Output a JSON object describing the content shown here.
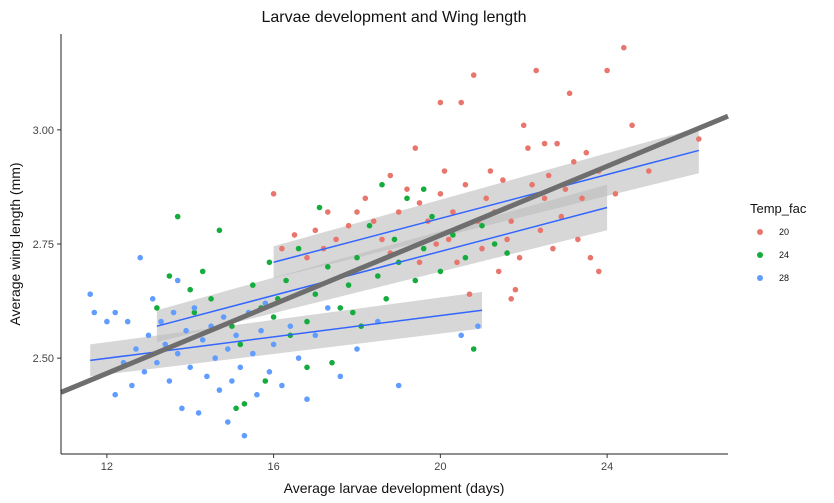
{
  "chart_data": {
    "type": "scatter",
    "title": "Larvae development and Wing length",
    "xlabel": "Average larvae development (days)",
    "ylabel": "Average wing length (mm)",
    "xlim": [
      10.9,
      26.9
    ],
    "ylim": [
      2.29,
      3.21
    ],
    "xticks": [
      12,
      16,
      20,
      24
    ],
    "yticks": [
      2.5,
      2.75,
      3.0
    ],
    "xtick_labels": [
      "12",
      "16",
      "20",
      "24"
    ],
    "ytick_labels": [
      "2.50",
      "2.75",
      "3.00"
    ],
    "grid": false,
    "legend": {
      "title": "Temp_fac",
      "placement": "right",
      "entries": [
        {
          "label": "20",
          "color": "#E8766D"
        },
        {
          "label": "24",
          "color": "#14AC3C"
        },
        {
          "label": "28",
          "color": "#619CFF"
        }
      ]
    },
    "series": [
      {
        "name": "20",
        "color": "#E8766D",
        "points": [
          [
            16,
            2.86
          ],
          [
            16.2,
            2.74
          ],
          [
            16.5,
            2.77
          ],
          [
            16.8,
            2.72
          ],
          [
            17,
            2.78
          ],
          [
            17.2,
            2.74
          ],
          [
            17.5,
            2.76
          ],
          [
            17.8,
            2.79
          ],
          [
            18,
            2.82
          ],
          [
            18.2,
            2.85
          ],
          [
            18.4,
            2.8
          ],
          [
            18.6,
            2.76
          ],
          [
            18.8,
            2.73
          ],
          [
            19,
            2.82
          ],
          [
            19.2,
            2.87
          ],
          [
            19.4,
            2.96
          ],
          [
            19.5,
            2.84
          ],
          [
            19.7,
            2.8
          ],
          [
            19.9,
            2.75
          ],
          [
            20,
            2.86
          ],
          [
            20.1,
            2.91
          ],
          [
            20.2,
            2.76
          ],
          [
            20.3,
            2.82
          ],
          [
            20.4,
            2.71
          ],
          [
            20.5,
            3.06
          ],
          [
            20.6,
            2.88
          ],
          [
            20.8,
            3.12
          ],
          [
            20.9,
            2.8
          ],
          [
            21,
            2.74
          ],
          [
            21.1,
            2.85
          ],
          [
            21.2,
            2.91
          ],
          [
            21.3,
            2.82
          ],
          [
            21.4,
            2.69
          ],
          [
            21.5,
            2.89
          ],
          [
            21.6,
            2.76
          ],
          [
            21.7,
            2.8
          ],
          [
            21.8,
            2.65
          ],
          [
            21.9,
            2.72
          ],
          [
            22,
            3.01
          ],
          [
            22.1,
            2.96
          ],
          [
            22.2,
            2.88
          ],
          [
            22.3,
            3.13
          ],
          [
            22.4,
            2.78
          ],
          [
            22.5,
            2.85
          ],
          [
            22.6,
            2.9
          ],
          [
            22.7,
            2.74
          ],
          [
            22.8,
            2.97
          ],
          [
            22.9,
            2.81
          ],
          [
            23,
            2.87
          ],
          [
            23.1,
            3.08
          ],
          [
            23.2,
            2.93
          ],
          [
            23.3,
            2.76
          ],
          [
            23.4,
            2.85
          ],
          [
            23.5,
            2.95
          ],
          [
            23.6,
            2.72
          ],
          [
            23.8,
            2.91
          ],
          [
            24,
            3.13
          ],
          [
            24.2,
            2.86
          ],
          [
            24.4,
            3.18
          ],
          [
            24.6,
            3.01
          ],
          [
            20.7,
            2.64
          ],
          [
            21.7,
            2.63
          ],
          [
            19.5,
            2.71
          ],
          [
            22.5,
            2.97
          ],
          [
            23.8,
            2.69
          ],
          [
            25,
            2.91
          ],
          [
            26.2,
            2.98
          ],
          [
            17.3,
            2.82
          ],
          [
            18.8,
            2.9
          ],
          [
            20,
            3.06
          ]
        ]
      },
      {
        "name": "24",
        "color": "#14AC3C",
        "points": [
          [
            13.2,
            2.61
          ],
          [
            13.5,
            2.68
          ],
          [
            13.7,
            2.81
          ],
          [
            14,
            2.65
          ],
          [
            14.3,
            2.69
          ],
          [
            14.5,
            2.63
          ],
          [
            14.7,
            2.78
          ],
          [
            15,
            2.57
          ],
          [
            15.1,
            2.39
          ],
          [
            15.3,
            2.4
          ],
          [
            15.5,
            2.66
          ],
          [
            15.7,
            2.61
          ],
          [
            15.9,
            2.71
          ],
          [
            16,
            2.59
          ],
          [
            16.1,
            2.63
          ],
          [
            16.3,
            2.67
          ],
          [
            16.4,
            2.55
          ],
          [
            16.6,
            2.74
          ],
          [
            16.8,
            2.58
          ],
          [
            17,
            2.64
          ],
          [
            17.1,
            2.83
          ],
          [
            17.3,
            2.7
          ],
          [
            17.4,
            2.49
          ],
          [
            17.6,
            2.61
          ],
          [
            17.8,
            2.66
          ],
          [
            18,
            2.72
          ],
          [
            18.1,
            2.57
          ],
          [
            18.3,
            2.79
          ],
          [
            18.5,
            2.68
          ],
          [
            18.7,
            2.63
          ],
          [
            18.9,
            2.76
          ],
          [
            19,
            2.71
          ],
          [
            19.2,
            2.85
          ],
          [
            19.4,
            2.67
          ],
          [
            19.6,
            2.74
          ],
          [
            19.8,
            2.81
          ],
          [
            20,
            2.69
          ],
          [
            20.3,
            2.77
          ],
          [
            20.6,
            2.72
          ],
          [
            20.8,
            2.52
          ],
          [
            21,
            2.79
          ],
          [
            21.3,
            2.75
          ],
          [
            21.6,
            2.73
          ],
          [
            15.8,
            2.45
          ],
          [
            16.8,
            2.48
          ],
          [
            17.9,
            2.6
          ],
          [
            18.6,
            2.88
          ],
          [
            19.6,
            2.87
          ],
          [
            14.1,
            2.6
          ],
          [
            15.2,
            2.53
          ]
        ]
      },
      {
        "name": "28",
        "color": "#619CFF",
        "points": [
          [
            11.6,
            2.64
          ],
          [
            11.7,
            2.6
          ],
          [
            12,
            2.58
          ],
          [
            12.2,
            2.42
          ],
          [
            12.4,
            2.49
          ],
          [
            12.5,
            2.58
          ],
          [
            12.6,
            2.44
          ],
          [
            12.7,
            2.52
          ],
          [
            12.8,
            2.72
          ],
          [
            12.9,
            2.47
          ],
          [
            13,
            2.55
          ],
          [
            13.1,
            2.63
          ],
          [
            13.2,
            2.49
          ],
          [
            13.3,
            2.58
          ],
          [
            13.4,
            2.53
          ],
          [
            13.5,
            2.45
          ],
          [
            13.6,
            2.6
          ],
          [
            13.7,
            2.51
          ],
          [
            13.8,
            2.39
          ],
          [
            13.9,
            2.56
          ],
          [
            14,
            2.48
          ],
          [
            14.1,
            2.61
          ],
          [
            14.2,
            2.38
          ],
          [
            14.3,
            2.54
          ],
          [
            14.4,
            2.46
          ],
          [
            14.5,
            2.57
          ],
          [
            14.6,
            2.5
          ],
          [
            14.7,
            2.43
          ],
          [
            14.8,
            2.59
          ],
          [
            14.9,
            2.52
          ],
          [
            15,
            2.45
          ],
          [
            15.1,
            2.55
          ],
          [
            15.2,
            2.48
          ],
          [
            15.3,
            2.33
          ],
          [
            15.4,
            2.6
          ],
          [
            15.5,
            2.51
          ],
          [
            15.6,
            2.42
          ],
          [
            15.7,
            2.56
          ],
          [
            15.8,
            2.62
          ],
          [
            15.9,
            2.47
          ],
          [
            16,
            2.53
          ],
          [
            16.2,
            2.44
          ],
          [
            16.4,
            2.57
          ],
          [
            16.6,
            2.5
          ],
          [
            16.8,
            2.41
          ],
          [
            17,
            2.55
          ],
          [
            17.3,
            2.61
          ],
          [
            17.6,
            2.46
          ],
          [
            18,
            2.52
          ],
          [
            18.5,
            2.58
          ],
          [
            19,
            2.44
          ],
          [
            20.5,
            2.55
          ],
          [
            20.9,
            2.57
          ],
          [
            14.9,
            2.36
          ],
          [
            12.2,
            2.6
          ],
          [
            13.7,
            2.67
          ]
        ]
      }
    ],
    "fits": [
      {
        "series": "20",
        "x": [
          16,
          26.2
        ],
        "y": [
          2.71,
          2.955
        ],
        "ci": [
          0.035,
          0.05
        ]
      },
      {
        "series": "24",
        "x": [
          13.2,
          24
        ],
        "y": [
          2.57,
          2.83
        ],
        "ci": [
          0.035,
          0.05
        ]
      },
      {
        "series": "28",
        "x": [
          11.6,
          21
        ],
        "y": [
          2.495,
          2.605
        ],
        "ci": [
          0.035,
          0.04
        ]
      },
      {
        "series": "overall",
        "x": [
          10.9,
          26.9
        ],
        "y": [
          2.425,
          3.03
        ],
        "ci": [
          0,
          0
        ]
      }
    ]
  }
}
